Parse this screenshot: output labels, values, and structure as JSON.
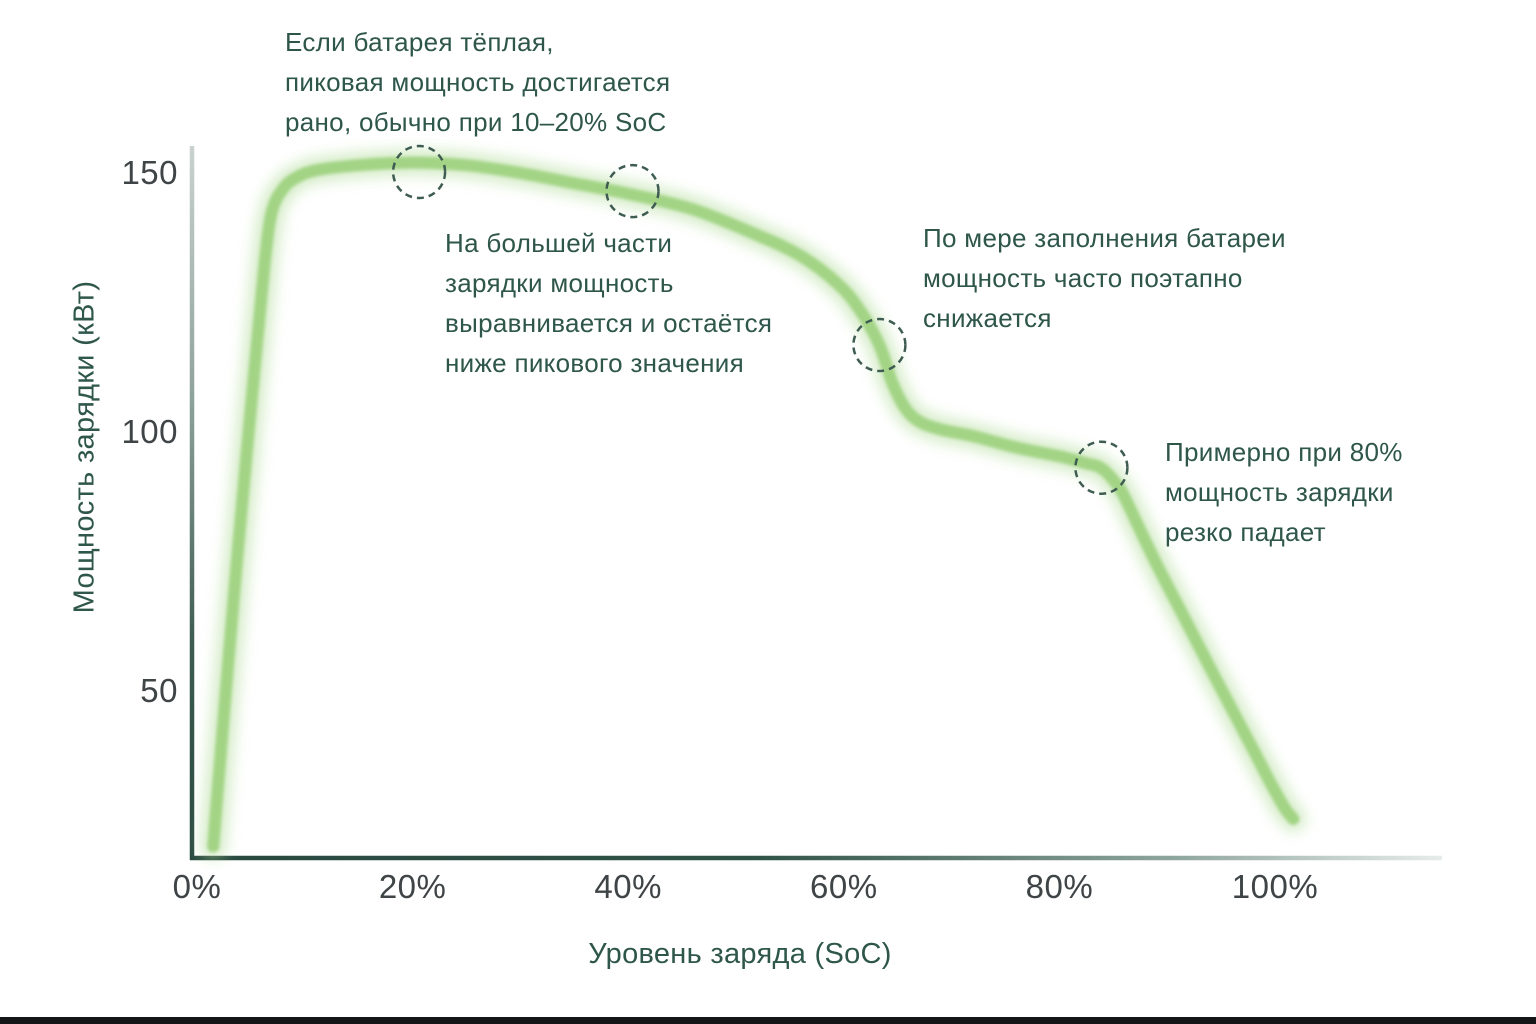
{
  "figure": {
    "y_axis_title": "Мощность зарядки (кВт)",
    "x_axis_title": "Уровень заряда (SoC)",
    "y_tick_labels": [
      "150",
      "100",
      "50"
    ],
    "x_tick_labels": [
      "0%",
      "20%",
      "40%",
      "60%",
      "80%",
      "100%"
    ]
  },
  "annotations": [
    {
      "name": "warm-battery-early-peak",
      "lines": [
        "Если батарея тёплая,",
        "пиковая мощность достигается",
        "рано, обычно при 10–20% SoC"
      ]
    },
    {
      "name": "plateau-below-peak",
      "lines": [
        "На большей части",
        "зарядки мощность",
        "выравнивается и остаётся",
        "ниже пикового значения"
      ]
    },
    {
      "name": "stepwise-decline",
      "lines": [
        "По мере заполнения батареи",
        "мощность часто поэтапно",
        "снижается"
      ]
    },
    {
      "name": "sharp-drop-at-80",
      "lines": [
        "Примерно при 80%",
        "мощность зарядки",
        "резко падает"
      ]
    }
  ],
  "colors": {
    "curve_green": "#A3D485",
    "curve_glow": "#AEDB94",
    "annotation_teal": "#2E564A",
    "tick_gray": "#3F4447",
    "axis_dark": "#29493F",
    "dashed_circle": "#3E5C52",
    "bottom_bar": "#131516"
  },
  "chart_data": {
    "type": "line",
    "title": "",
    "xlabel": "Уровень заряда (SoC)",
    "ylabel": "Мощность зарядки (кВт)",
    "x_ticks": [
      0,
      20,
      40,
      60,
      80,
      100
    ],
    "y_ticks": [
      150,
      100,
      50
    ],
    "xlim": [
      0,
      102
    ],
    "ylim": [
      18,
      160
    ],
    "grid": false,
    "legend": "none",
    "series": [
      {
        "name": "charging-power-kw",
        "points": [
          [
            1.5,
            20
          ],
          [
            2.6,
            48
          ],
          [
            3.7,
            75
          ],
          [
            4.7,
            98
          ],
          [
            5.7,
            120
          ],
          [
            6.4,
            135
          ],
          [
            7.0,
            143
          ],
          [
            8.0,
            147
          ],
          [
            9.1,
            149
          ],
          [
            11,
            150.5
          ],
          [
            15,
            151.5
          ],
          [
            20,
            152
          ],
          [
            25,
            151.5
          ],
          [
            30,
            150
          ],
          [
            35,
            148
          ],
          [
            40,
            146
          ],
          [
            46,
            143
          ],
          [
            52,
            138
          ],
          [
            56,
            134
          ],
          [
            59.5,
            128.5
          ],
          [
            61.5,
            123.5
          ],
          [
            63.3,
            116.8
          ],
          [
            64.5,
            109.5
          ],
          [
            65.7,
            104.6
          ],
          [
            67,
            102
          ],
          [
            69,
            100.5
          ],
          [
            72,
            99.2
          ],
          [
            76,
            97
          ],
          [
            80,
            95.3
          ],
          [
            82.4,
            94
          ],
          [
            83.9,
            93
          ],
          [
            85.4,
            89.7
          ],
          [
            86.2,
            86.8
          ],
          [
            87.5,
            81
          ],
          [
            89.3,
            73.3
          ],
          [
            91.7,
            63.7
          ],
          [
            94,
            54.4
          ],
          [
            96.3,
            45.3
          ],
          [
            98.1,
            38.2
          ],
          [
            99.7,
            31.8
          ],
          [
            100.9,
            27.4
          ],
          [
            101.7,
            25.3
          ]
        ]
      }
    ],
    "markers": [
      {
        "name": "peak-marker",
        "soc": 20.6,
        "kw": 150.2
      },
      {
        "name": "plateau-marker",
        "soc": 40.4,
        "kw": 146.5
      },
      {
        "name": "step-down-marker",
        "soc": 63.3,
        "kw": 116.8
      },
      {
        "name": "knee-80-marker",
        "soc": 83.9,
        "kw": 93.1
      }
    ]
  }
}
